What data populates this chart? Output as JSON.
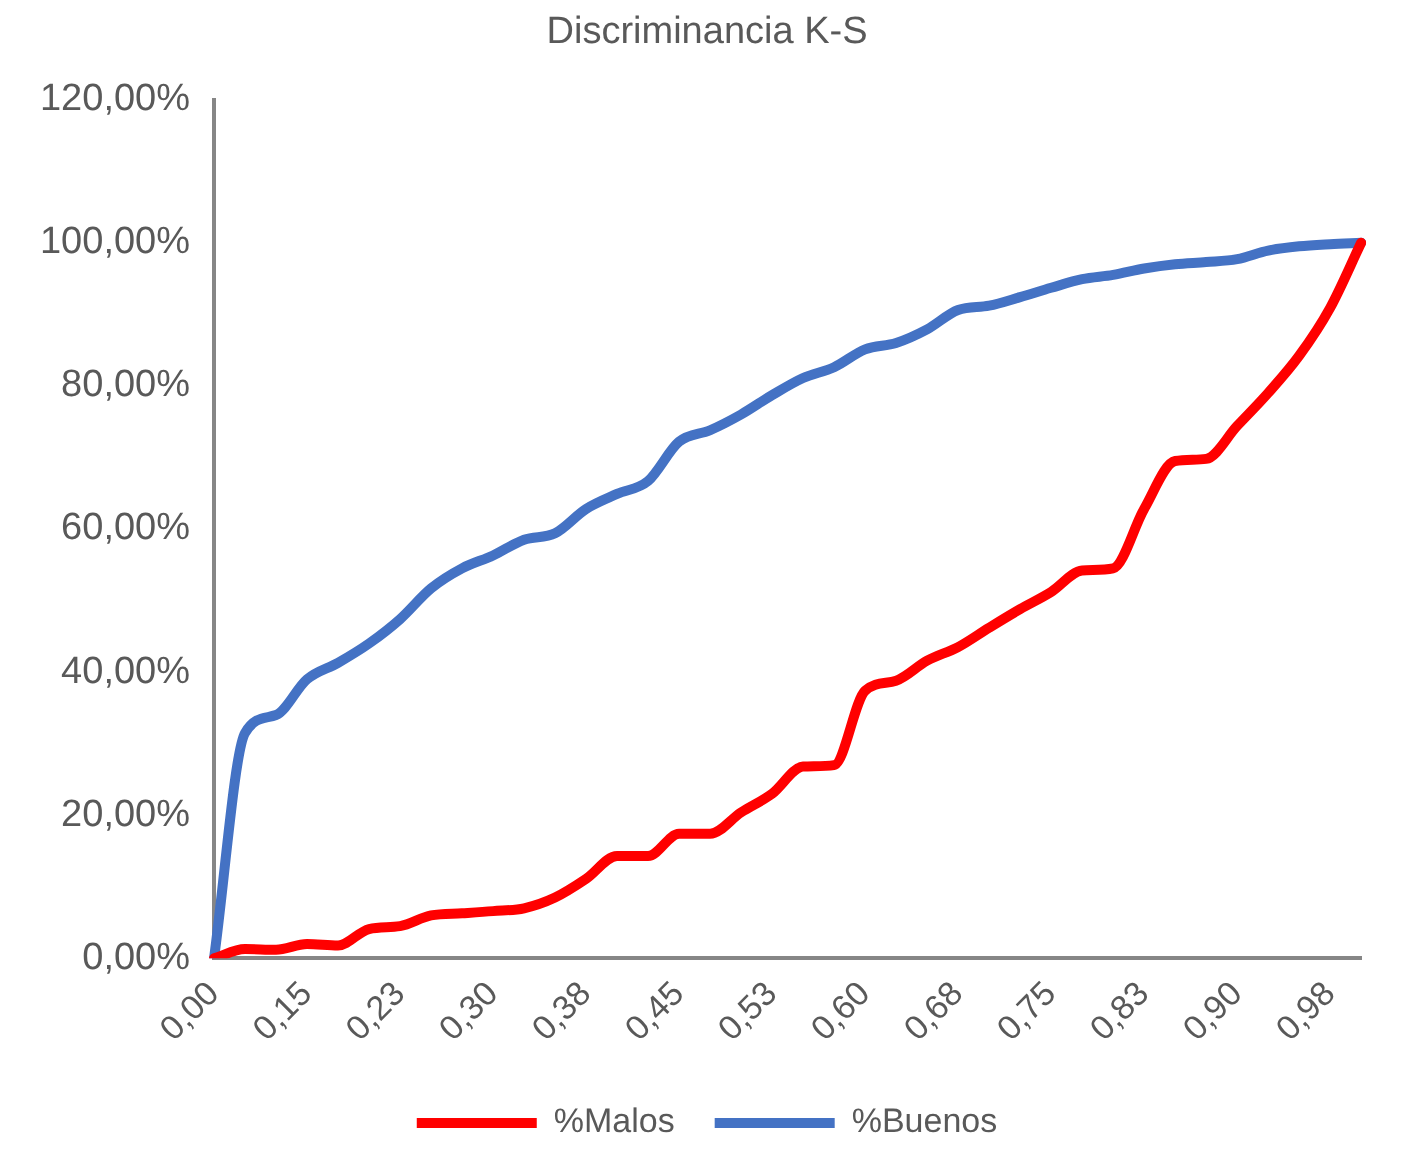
{
  "chart_data": {
    "type": "line",
    "title": "Discriminancia K-S",
    "categories": [
      "0,00",
      null,
      null,
      "0,15",
      null,
      null,
      "0,23",
      null,
      null,
      "0,30",
      null,
      null,
      "0,38",
      null,
      null,
      "0,45",
      null,
      null,
      "0,53",
      null,
      null,
      "0,60",
      null,
      null,
      "0,68",
      null,
      null,
      "0,75",
      null,
      null,
      "0,83",
      null,
      null,
      "0,90",
      null,
      null,
      "0,98",
      null
    ],
    "series": [
      {
        "name": "%Malos",
        "color": "#ff0000",
        "values": [
          0,
          1.3,
          1.2,
          2,
          1.8,
          4.1,
          4.5,
          6,
          6.3,
          6.6,
          7,
          8.5,
          11.1,
          14.3,
          14.3,
          17.4,
          17.4,
          20.4,
          23,
          26.8,
          27,
          37.4,
          38.8,
          41.6,
          43.5,
          46.2,
          48.8,
          51.2,
          54.2,
          54.5,
          62.8,
          69.5,
          69.8,
          74.4,
          79,
          84.2,
          90.9,
          100
        ]
      },
      {
        "name": "%Buenos",
        "color": "#4472c4",
        "values": [
          0,
          31.5,
          34,
          39,
          41.3,
          44,
          47.4,
          51.7,
          54.5,
          56.3,
          58.5,
          59.4,
          62.8,
          64.9,
          66.7,
          72.2,
          73.8,
          76,
          78.7,
          81.1,
          82.6,
          85.1,
          86,
          87.9,
          90.6,
          91.2,
          92.4,
          93.7,
          94.9,
          95.5,
          96.4,
          97,
          97.3,
          97.7,
          98.9,
          99.5,
          99.8,
          100
        ]
      }
    ],
    "ylim": [
      0,
      120
    ],
    "yticks": [
      {
        "value": 0,
        "label": "0,00%"
      },
      {
        "value": 20,
        "label": "20,00%"
      },
      {
        "value": 40,
        "label": "40,00%"
      },
      {
        "value": 60,
        "label": "60,00%"
      },
      {
        "value": 80,
        "label": "80,00%"
      },
      {
        "value": 100,
        "label": "100,00%"
      },
      {
        "value": 120,
        "label": "120,00%"
      }
    ],
    "legend": "bottom",
    "marker": "none",
    "line_style": "solid"
  }
}
